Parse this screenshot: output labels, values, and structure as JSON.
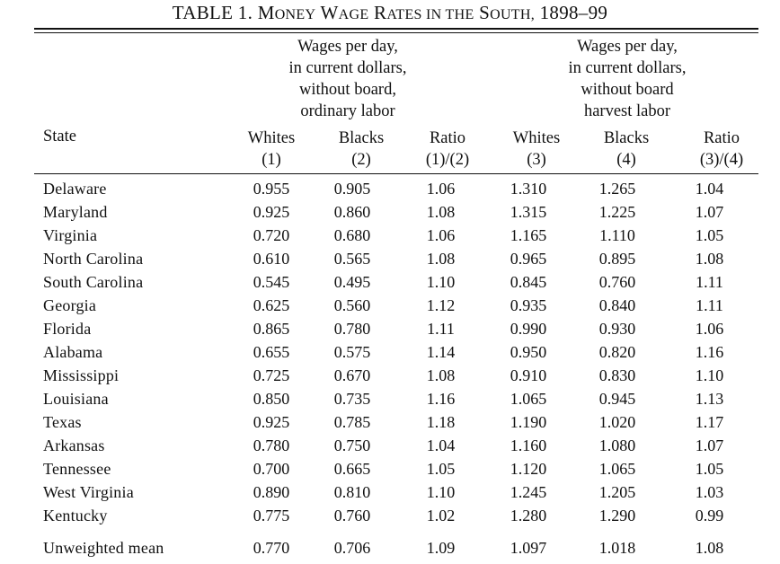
{
  "table": {
    "title_prefix": "TABLE 1.",
    "title_words": [
      {
        "first": "M",
        "rest": "ONEY"
      },
      {
        "first": "W",
        "rest": "AGE"
      },
      {
        "first": "R",
        "rest": "ATES IN THE"
      },
      {
        "first": "S",
        "rest": "OUTH,"
      }
    ],
    "title_years": "1898–99",
    "group_1_header": [
      "Wages per day,",
      "in current dollars,",
      "without board,",
      "ordinary labor"
    ],
    "group_2_header": [
      "Wages per day,",
      "in current dollars,",
      "without board",
      "harvest labor"
    ],
    "state_header": "State",
    "columns": [
      {
        "label": "Whites",
        "sub": "(1)"
      },
      {
        "label": "Blacks",
        "sub": "(2)"
      },
      {
        "label": "Ratio",
        "sub": "(1)/(2)"
      },
      {
        "label": "Whites",
        "sub": "(3)"
      },
      {
        "label": "Blacks",
        "sub": "(4)"
      },
      {
        "label": "Ratio",
        "sub": "(3)/(4)"
      }
    ],
    "rows": [
      {
        "state": "Delaware",
        "values": [
          "0.955",
          "0.905",
          "1.06",
          "1.310",
          "1.265",
          "1.04"
        ]
      },
      {
        "state": "Maryland",
        "values": [
          "0.925",
          "0.860",
          "1.08",
          "1.315",
          "1.225",
          "1.07"
        ]
      },
      {
        "state": "Virginia",
        "values": [
          "0.720",
          "0.680",
          "1.06",
          "1.165",
          "1.110",
          "1.05"
        ]
      },
      {
        "state": "North Carolina",
        "values": [
          "0.610",
          "0.565",
          "1.08",
          "0.965",
          "0.895",
          "1.08"
        ]
      },
      {
        "state": "South Carolina",
        "values": [
          "0.545",
          "0.495",
          "1.10",
          "0.845",
          "0.760",
          "1.11"
        ]
      },
      {
        "state": "Georgia",
        "values": [
          "0.625",
          "0.560",
          "1.12",
          "0.935",
          "0.840",
          "1.11"
        ]
      },
      {
        "state": "Florida",
        "values": [
          "0.865",
          "0.780",
          "1.11",
          "0.990",
          "0.930",
          "1.06"
        ]
      },
      {
        "state": "Alabama",
        "values": [
          "0.655",
          "0.575",
          "1.14",
          "0.950",
          "0.820",
          "1.16"
        ]
      },
      {
        "state": "Mississippi",
        "values": [
          "0.725",
          "0.670",
          "1.08",
          "0.910",
          "0.830",
          "1.10"
        ]
      },
      {
        "state": "Louisiana",
        "values": [
          "0.850",
          "0.735",
          "1.16",
          "1.065",
          "0.945",
          "1.13"
        ]
      },
      {
        "state": "Texas",
        "values": [
          "0.925",
          "0.785",
          "1.18",
          "1.190",
          "1.020",
          "1.17"
        ]
      },
      {
        "state": "Arkansas",
        "values": [
          "0.780",
          "0.750",
          "1.04",
          "1.160",
          "1.080",
          "1.07"
        ]
      },
      {
        "state": "Tennessee",
        "values": [
          "0.700",
          "0.665",
          "1.05",
          "1.120",
          "1.065",
          "1.05"
        ]
      },
      {
        "state": "West Virginia",
        "values": [
          "0.890",
          "0.810",
          "1.10",
          "1.245",
          "1.205",
          "1.03"
        ]
      },
      {
        "state": "Kentucky",
        "values": [
          "0.775",
          "0.760",
          "1.02",
          "1.280",
          "1.290",
          "0.99"
        ]
      }
    ],
    "mean_row": {
      "state": "Unweighted mean",
      "values": [
        "0.770",
        "0.706",
        "1.09",
        "1.097",
        "1.018",
        "1.08"
      ]
    }
  }
}
